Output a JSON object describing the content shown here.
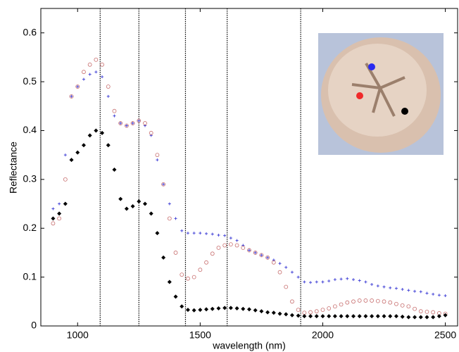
{
  "chart_data": {
    "type": "scatter",
    "xlabel": "wavelength (nm)",
    "ylabel": "Reflectance",
    "x": [
      900,
      925,
      950,
      975,
      1000,
      1025,
      1050,
      1075,
      1100,
      1125,
      1150,
      1175,
      1200,
      1225,
      1250,
      1275,
      1300,
      1325,
      1350,
      1375,
      1400,
      1425,
      1450,
      1475,
      1500,
      1525,
      1550,
      1575,
      1600,
      1625,
      1650,
      1675,
      1700,
      1725,
      1750,
      1775,
      1800,
      1825,
      1850,
      1875,
      1900,
      1925,
      1950,
      1975,
      2000,
      2025,
      2050,
      2075,
      2100,
      2125,
      2150,
      2175,
      2200,
      2225,
      2250,
      2275,
      2300,
      2325,
      2350,
      2375,
      2400,
      2425,
      2450,
      2475,
      2500
    ],
    "series": [
      {
        "color": "#4a4ad8",
        "marker": "cross",
        "values": [
          0.24,
          0.25,
          0.35,
          0.47,
          0.49,
          0.505,
          0.515,
          0.52,
          0.51,
          0.47,
          0.43,
          0.415,
          0.41,
          0.415,
          0.42,
          0.41,
          0.39,
          0.34,
          0.29,
          0.25,
          0.22,
          0.195,
          0.19,
          0.19,
          0.19,
          0.189,
          0.188,
          0.186,
          0.185,
          0.18,
          0.175,
          0.165,
          0.155,
          0.15,
          0.145,
          0.14,
          0.135,
          0.128,
          0.12,
          0.11,
          0.1,
          0.09,
          0.089,
          0.09,
          0.09,
          0.092,
          0.095,
          0.096,
          0.097,
          0.095,
          0.093,
          0.09,
          0.085,
          0.082,
          0.08,
          0.078,
          0.077,
          0.075,
          0.073,
          0.071,
          0.07,
          0.067,
          0.065,
          0.063,
          0.062
        ]
      },
      {
        "color": "#c87070",
        "marker": "circle",
        "values": [
          0.21,
          0.22,
          0.3,
          0.47,
          0.49,
          0.52,
          0.535,
          0.545,
          0.535,
          0.49,
          0.44,
          0.415,
          0.41,
          0.415,
          0.42,
          0.415,
          0.395,
          0.35,
          0.29,
          0.22,
          0.15,
          0.105,
          0.097,
          0.1,
          0.115,
          0.13,
          0.148,
          0.16,
          0.165,
          0.167,
          0.165,
          0.16,
          0.155,
          0.15,
          0.145,
          0.14,
          0.13,
          0.11,
          0.08,
          0.05,
          0.033,
          0.027,
          0.028,
          0.03,
          0.033,
          0.036,
          0.04,
          0.044,
          0.048,
          0.05,
          0.052,
          0.052,
          0.052,
          0.051,
          0.05,
          0.048,
          0.045,
          0.042,
          0.04,
          0.035,
          0.03,
          0.029,
          0.028,
          0.026,
          0.025
        ]
      },
      {
        "color": "#000000",
        "marker": "diamond",
        "values": [
          0.22,
          0.23,
          0.25,
          0.34,
          0.355,
          0.37,
          0.39,
          0.4,
          0.395,
          0.37,
          0.32,
          0.26,
          0.24,
          0.245,
          0.255,
          0.25,
          0.23,
          0.19,
          0.14,
          0.09,
          0.06,
          0.04,
          0.033,
          0.032,
          0.033,
          0.034,
          0.035,
          0.036,
          0.037,
          0.037,
          0.036,
          0.035,
          0.034,
          0.032,
          0.03,
          0.028,
          0.027,
          0.025,
          0.024,
          0.022,
          0.021,
          0.02,
          0.02,
          0.02,
          0.02,
          0.02,
          0.02,
          0.02,
          0.02,
          0.02,
          0.02,
          0.02,
          0.02,
          0.02,
          0.02,
          0.02,
          0.02,
          0.019,
          0.018,
          0.018,
          0.018,
          0.018,
          0.018,
          0.02,
          0.022
        ]
      }
    ],
    "vlines": [
      1092,
      1250,
      1440,
      1610,
      1910
    ],
    "xlim": [
      850,
      2550
    ],
    "ylim": [
      0,
      0.65
    ],
    "xticks": [
      1000,
      1500,
      2000,
      2500
    ],
    "yticks": [
      0,
      0.1,
      0.2,
      0.3,
      0.4,
      0.5,
      0.6
    ]
  }
}
